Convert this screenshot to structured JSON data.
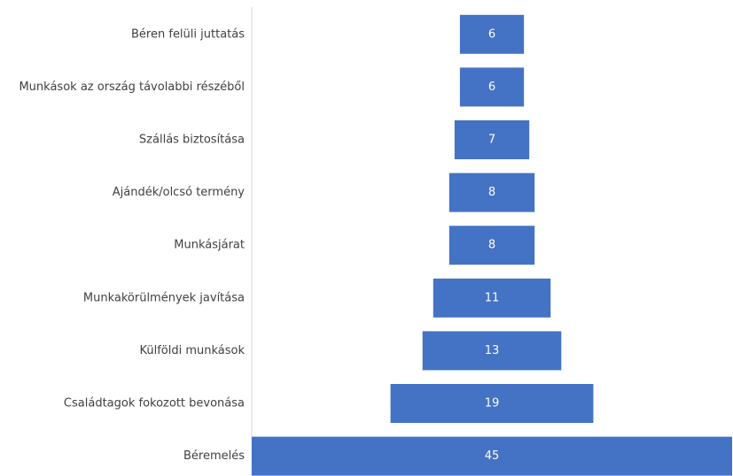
{
  "chart_data": {
    "type": "funnel",
    "categories": [
      "Béren felüli juttatás",
      "Munkások az ország távolabbi részéből",
      "Szállás biztosítása",
      "Ajándék/olcsó termény",
      "Munkásjárat",
      "Munkakörülmények javítása",
      "Külföldi munkások",
      "Családtagok fokozott bevonása",
      "Béremelés"
    ],
    "values": [
      6,
      6,
      7,
      8,
      8,
      11,
      13,
      19,
      45
    ],
    "color": "#4472c4"
  }
}
